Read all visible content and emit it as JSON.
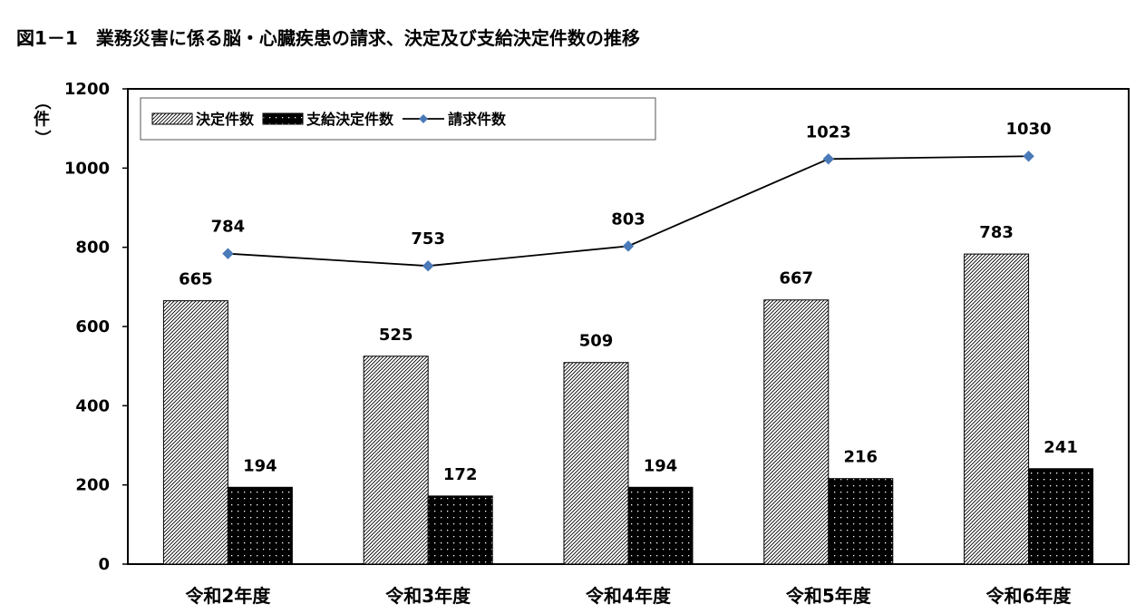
{
  "chart_data": {
    "type": "bar",
    "title": "図1－1　業務災害に係る脳・心臓疾患の請求、決定及び支給決定件数の推移",
    "ylabel": "（件）",
    "xlabel": "",
    "categories": [
      "令和2年度",
      "令和3年度",
      "令和4年度",
      "令和5年度",
      "令和6年度"
    ],
    "series": [
      {
        "name": "決定件数",
        "kind": "bar",
        "pattern": "diagonal-hatch",
        "values": [
          665,
          525,
          509,
          667,
          783
        ]
      },
      {
        "name": "支給決定件数",
        "kind": "bar",
        "pattern": "black-dotted",
        "values": [
          194,
          172,
          194,
          216,
          241
        ]
      },
      {
        "name": "請求件数",
        "kind": "line",
        "color": "#4a7ab8",
        "values": [
          784,
          753,
          803,
          1023,
          1030
        ]
      }
    ],
    "ylim": [
      0,
      1200
    ],
    "yticks": [
      0,
      200,
      400,
      600,
      800,
      1000,
      1200
    ],
    "grid": false,
    "legend_position": "top-left"
  }
}
